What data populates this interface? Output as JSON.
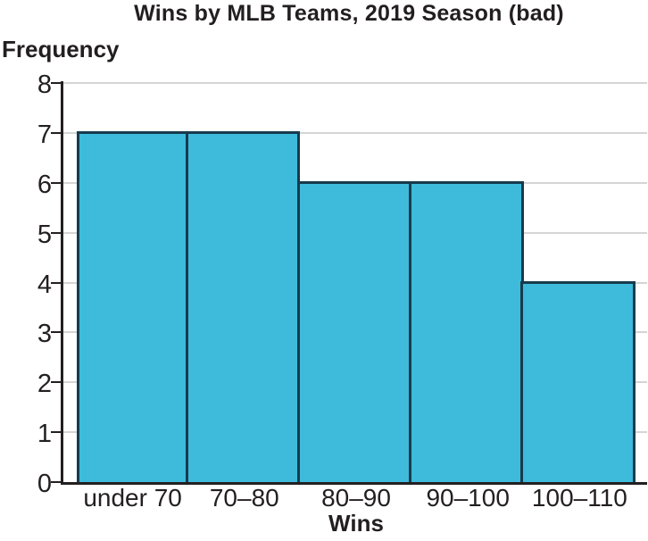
{
  "chart_data": {
    "type": "bar",
    "subtype": "histogram",
    "title": "Wins by MLB Teams, 2019 Season (bad)",
    "xlabel": "Wins",
    "ylabel": "Frequency",
    "categories": [
      "under 70",
      "70–80",
      "80–90",
      "90–100",
      "100–110"
    ],
    "values": [
      7,
      7,
      6,
      6,
      4
    ],
    "ylim": [
      0,
      8
    ],
    "yticks": [
      0,
      1,
      2,
      3,
      4,
      5,
      6,
      7,
      8
    ],
    "grid": "horizontal gridlines at each integer frequency",
    "legend": "none",
    "bars_adjacent": true,
    "colors": {
      "bar_fill": "#3EBBDB",
      "bar_border": "#173B4D",
      "gridline": "#D5D5D5",
      "axis": "#231F20",
      "text": "#231F20",
      "background": "#FFFFFF"
    }
  }
}
